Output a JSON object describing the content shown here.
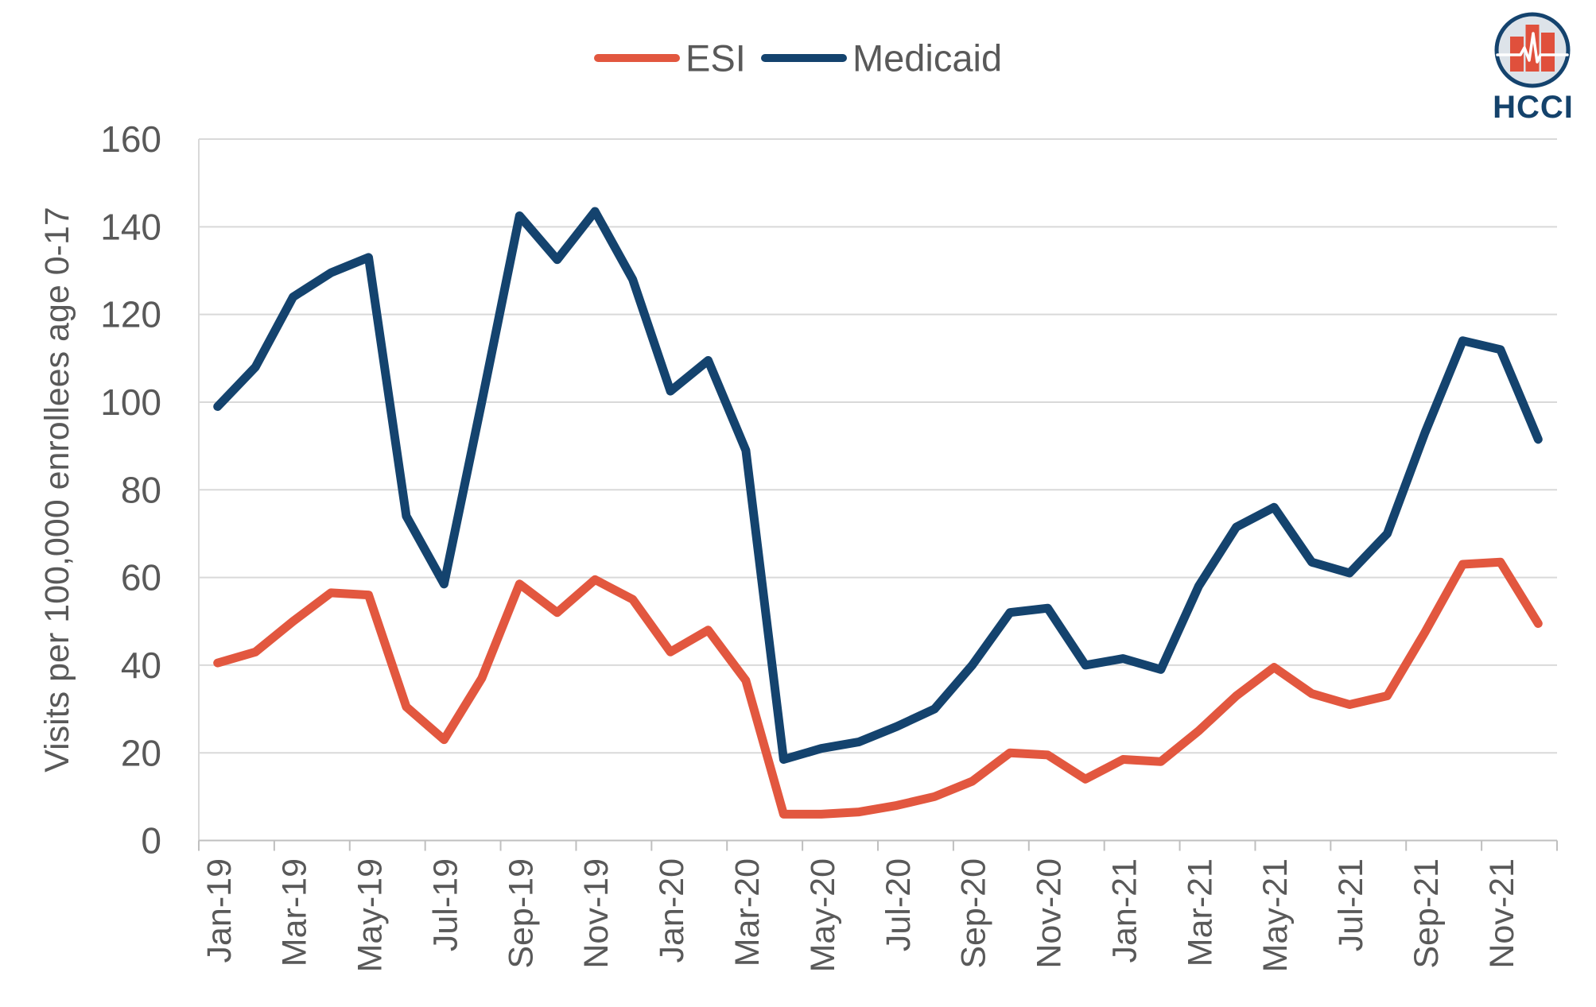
{
  "page": {
    "background": "#ffffff"
  },
  "colors": {
    "esi": "#E2573F",
    "medicaid": "#14436E",
    "gridline": "#D9D9D9",
    "axis_line": "#BFBFBF",
    "label_text": "#595959",
    "logo_fill": "#DDE3E9",
    "logo_ring": "#14436E",
    "logo_bars": "#E0503C",
    "logo_text_color": "#14426B"
  },
  "legend": {
    "items": [
      {
        "label": "ESI",
        "color": "#E2573F"
      },
      {
        "label": "Medicaid",
        "color": "#14436E"
      }
    ],
    "position": "top-center"
  },
  "logo": {
    "name": "hcci-logo",
    "text": "HCCI",
    "description": "circular badge with three orange bars and white EKG pulse line"
  },
  "chart_data": {
    "type": "line",
    "title": "",
    "ylabel": "Visits per 100,000 enrollees age 0-17",
    "xlabel": "",
    "ylim": [
      0,
      160
    ],
    "yticks": [
      0,
      20,
      40,
      60,
      80,
      100,
      120,
      140,
      160
    ],
    "grid": true,
    "xtick_label_every": 2,
    "x": [
      "Jan-19",
      "Feb-19",
      "Mar-19",
      "Apr-19",
      "May-19",
      "Jun-19",
      "Jul-19",
      "Aug-19",
      "Sep-19",
      "Oct-19",
      "Nov-19",
      "Dec-19",
      "Jan-20",
      "Feb-20",
      "Mar-20",
      "Apr-20",
      "May-20",
      "Jun-20",
      "Jul-20",
      "Aug-20",
      "Sep-20",
      "Oct-20",
      "Nov-20",
      "Dec-20",
      "Jan-21",
      "Feb-21",
      "Mar-21",
      "Apr-21",
      "May-21",
      "Jun-21",
      "Jul-21",
      "Aug-21",
      "Sep-21",
      "Oct-21",
      "Nov-21",
      "Dec-21"
    ],
    "x_labels_shown": [
      "Jan-19",
      "Mar-19",
      "May-19",
      "Jul-19",
      "Sep-19",
      "Nov-19",
      "Jan-20",
      "Mar-20",
      "May-20",
      "Jul-20",
      "Sep-20",
      "Nov-20",
      "Jan-21",
      "Mar-21",
      "May-21",
      "Jul-21",
      "Sep-21",
      "Nov-21"
    ],
    "series": [
      {
        "name": "ESI",
        "color": "#E2573F",
        "values": [
          40.5,
          43,
          50,
          56.5,
          56,
          30.5,
          23,
          37,
          58.5,
          52,
          59.5,
          55,
          43,
          48,
          36.5,
          6,
          6,
          6.5,
          8,
          10,
          13.5,
          20,
          19.5,
          14,
          18.5,
          18,
          25,
          33,
          39.5,
          33.5,
          31,
          33,
          47.5,
          63,
          63.5,
          49.5
        ]
      },
      {
        "name": "Medicaid",
        "color": "#14436E",
        "values": [
          99,
          108,
          124,
          129.5,
          133,
          74,
          58.5,
          100,
          142.5,
          132.5,
          143.5,
          128,
          102.5,
          109.5,
          89,
          18.5,
          21,
          22.5,
          26,
          30,
          40,
          52,
          53,
          40,
          41.5,
          39,
          58,
          71.5,
          76,
          63.5,
          61,
          70,
          93,
          114,
          112,
          91.5
        ]
      }
    ],
    "legend_position": "top-center"
  }
}
